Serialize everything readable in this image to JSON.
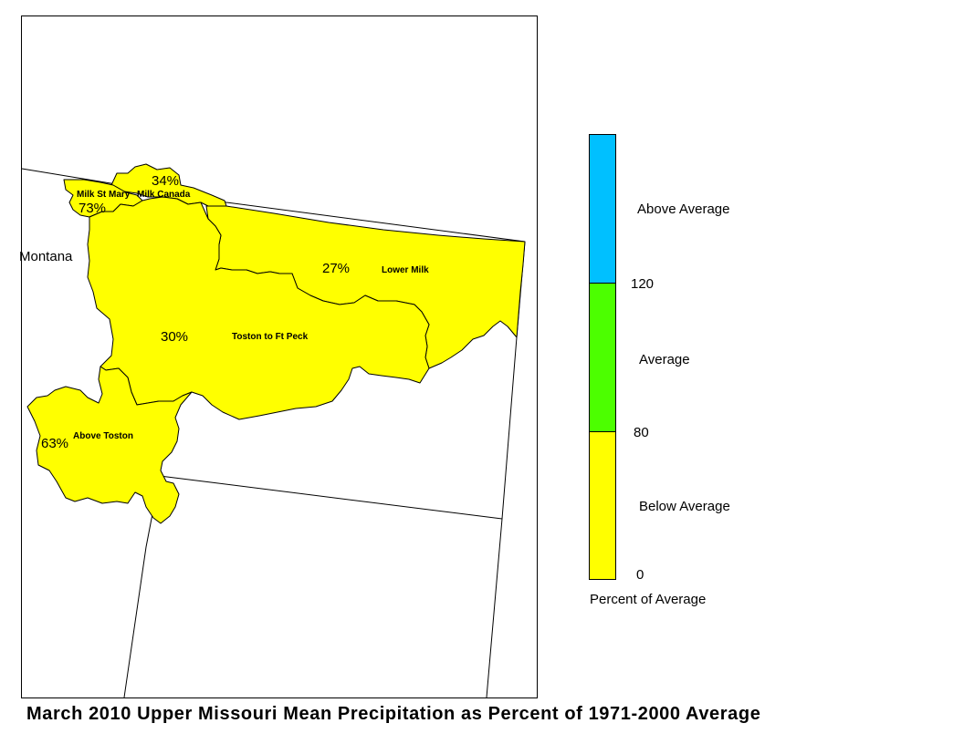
{
  "title": "March 2010 Upper Missouri Mean Precipitation as Percent of 1971-2000 Average",
  "map": {
    "state_label": "Montana",
    "basins": [
      {
        "name": "Milk St Mary",
        "percent": "73%",
        "category": "Below Average"
      },
      {
        "name": "Milk Canada",
        "percent": "34%",
        "category": "Below Average"
      },
      {
        "name": "Lower Milk",
        "percent": "27%",
        "category": "Below Average"
      },
      {
        "name": "Toston to Ft Peck",
        "percent": "30%",
        "category": "Below Average"
      },
      {
        "name": "Above Toston",
        "percent": "63%",
        "category": "Below Average"
      }
    ]
  },
  "legend": {
    "title": "Percent of Average",
    "categories": [
      {
        "label": "Above Average",
        "color": "#00c0ff"
      },
      {
        "label": "Average",
        "color": "#4cff00"
      },
      {
        "label": "Below Average",
        "color": "#ffff00"
      }
    ],
    "ticks": [
      "120",
      "80",
      "0"
    ]
  }
}
